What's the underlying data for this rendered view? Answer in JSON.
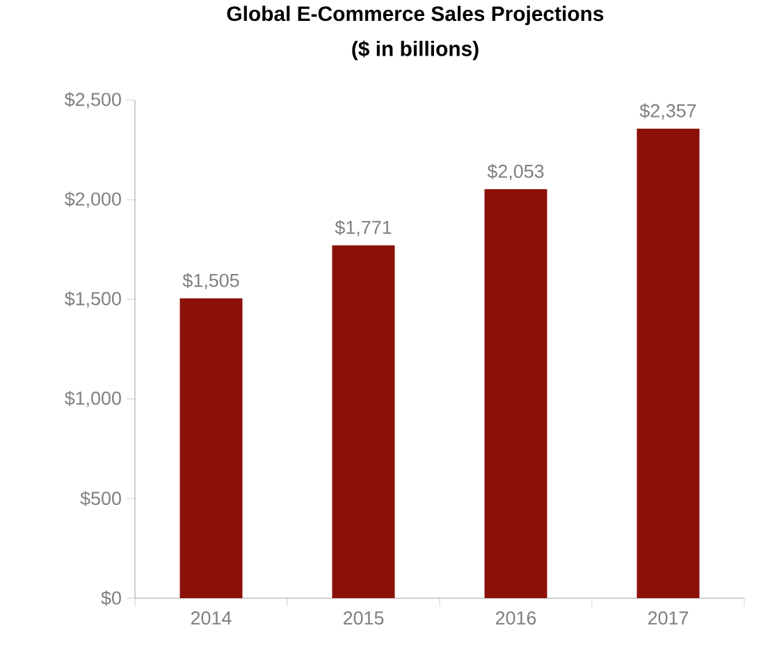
{
  "chart_data": {
    "type": "bar",
    "title": "Global E-Commerce Sales Projections",
    "subtitle": "($ in billions)",
    "categories": [
      "2014",
      "2015",
      "2016",
      "2017"
    ],
    "values": [
      1505,
      1771,
      2053,
      2357
    ],
    "value_labels": [
      "$1,505",
      "$1,771",
      "$2,053",
      "$2,357"
    ],
    "color": "#8b1108",
    "ylim": [
      0,
      2500
    ],
    "yticks": [
      {
        "value": 0,
        "label": "$0"
      },
      {
        "value": 500,
        "label": "$500"
      },
      {
        "value": 1000,
        "label": "$1,000"
      },
      {
        "value": 1500,
        "label": "$1,500"
      },
      {
        "value": 2000,
        "label": "$2,000"
      },
      {
        "value": 2500,
        "label": "$2,500"
      }
    ],
    "grid": false
  }
}
